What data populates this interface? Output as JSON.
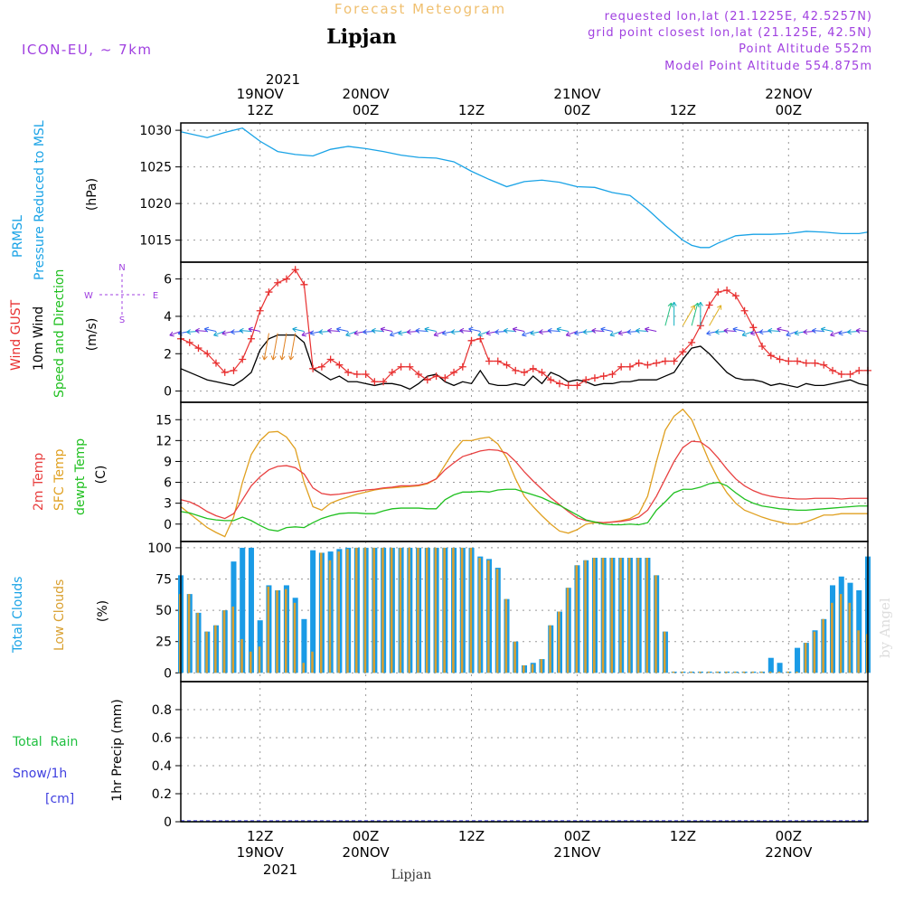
{
  "header": {
    "subtitle": "Forecast Meteogram",
    "location": "Lipjan",
    "model": "ICON-EU, ~ 7km",
    "requested": "requested lon,lat (21.1225E, 42.5257N)",
    "grid_point": "grid point closest lon,lat (21.125E, 42.5N)",
    "point_altitude": "Point Altitude 552m",
    "model_altitude": "Model Point Altitude 554.875m",
    "footer_location": "Lipjan",
    "watermark": "by Angel"
  },
  "time_axis": {
    "top_year": "2021",
    "bottom_year": "2021",
    "unit": "hours from 19NOV 00Z",
    "range": [
      3,
      81
    ],
    "ticks": [
      {
        "hour": 12,
        "time": "12Z",
        "date": "19NOV"
      },
      {
        "hour": 24,
        "time": "00Z",
        "date": "20NOV"
      },
      {
        "hour": 36,
        "time": "12Z",
        "date": ""
      },
      {
        "hour": 48,
        "time": "00Z",
        "date": "21NOV"
      },
      {
        "hour": 60,
        "time": "12Z",
        "date": ""
      },
      {
        "hour": 72,
        "time": "00Z",
        "date": "22NOV"
      }
    ]
  },
  "panel_labels": {
    "pressure": [
      "PRMSL",
      "Pressure Reduced to MSL",
      "(hPa)"
    ],
    "wind": [
      "Wind GUST",
      "10m Wind",
      "Speed and Direction",
      "(m/s)"
    ],
    "compass": {
      "n": "N",
      "s": "S",
      "e": "E",
      "w": "W"
    },
    "temp": [
      "2m Temp",
      "SFC Temp",
      "dewpt Temp",
      "(C)"
    ],
    "clouds": [
      "Total Clouds",
      "Low Clouds",
      "(%)"
    ],
    "precip": [
      "Total  Rain",
      "Snow/1h",
      "[cm]",
      "1hr Precip (mm)"
    ]
  },
  "colors": {
    "pressure": "#1aa3e6",
    "gust": "#e83030",
    "wind": "#000000",
    "temp2m": "#e84040",
    "sfc": "#e0a020",
    "dewpt": "#20c020",
    "total_cloud": "#1a9be6",
    "low_cloud": "#d9a030",
    "title": "#f0c070",
    "info": "#a040e0",
    "rain": "#20c040",
    "snow": "#4040e0"
  },
  "chart_data": [
    {
      "type": "line",
      "title": "PRMSL Pressure Reduced to MSL",
      "ylabel": "(hPa)",
      "ylim": [
        1012,
        1031
      ],
      "yticks": [
        1015,
        1020,
        1025,
        1030
      ],
      "x": [
        3,
        6,
        8,
        10,
        12,
        14,
        16,
        18,
        20,
        22,
        24,
        26,
        28,
        30,
        32,
        34,
        36,
        38,
        40,
        42,
        44,
        46,
        48,
        50,
        52,
        54,
        56,
        58,
        60,
        61,
        62,
        63,
        64,
        66,
        68,
        70,
        72,
        74,
        76,
        78,
        80,
        81
      ],
      "series": [
        {
          "name": "PRMSL",
          "values": [
            1029.8,
            1029.0,
            1029.7,
            1030.3,
            1028.5,
            1027.1,
            1026.7,
            1026.5,
            1027.4,
            1027.8,
            1027.5,
            1027.1,
            1026.6,
            1026.3,
            1026.2,
            1025.7,
            1024.4,
            1023.3,
            1022.3,
            1023.0,
            1023.2,
            1022.9,
            1022.3,
            1022.2,
            1021.5,
            1021.1,
            1019.2,
            1017.0,
            1015.0,
            1014.3,
            1014.0,
            1014.0,
            1014.6,
            1015.6,
            1015.8,
            1015.8,
            1015.9,
            1016.2,
            1016.1,
            1015.9,
            1015.9,
            1016.1
          ]
        }
      ]
    },
    {
      "type": "line",
      "title": "Wind GUST / 10m Wind Speed and Direction",
      "ylabel": "(m/s)",
      "ylim": [
        -0.6,
        6.9
      ],
      "yticks": [
        0,
        2,
        4,
        6
      ],
      "x": [
        3,
        4,
        5,
        6,
        7,
        8,
        9,
        10,
        11,
        12,
        13,
        14,
        15,
        16,
        17,
        18,
        19,
        20,
        21,
        22,
        23,
        24,
        25,
        26,
        27,
        28,
        29,
        30,
        31,
        32,
        33,
        34,
        35,
        36,
        37,
        38,
        39,
        40,
        41,
        42,
        43,
        44,
        45,
        46,
        47,
        48,
        49,
        50,
        51,
        52,
        53,
        54,
        55,
        56,
        57,
        58,
        59,
        60,
        61,
        62,
        63,
        64,
        65,
        66,
        67,
        68,
        69,
        70,
        71,
        72,
        73,
        74,
        75,
        76,
        77,
        78,
        79,
        80,
        81
      ],
      "series": [
        {
          "name": "Wind GUST",
          "values": [
            2.8,
            2.6,
            2.3,
            2.0,
            1.5,
            1.0,
            1.1,
            1.7,
            2.8,
            4.3,
            5.3,
            5.8,
            6.0,
            6.5,
            5.7,
            1.2,
            1.3,
            1.7,
            1.4,
            1.0,
            0.9,
            0.9,
            0.5,
            0.5,
            1.0,
            1.3,
            1.3,
            0.9,
            0.6,
            0.8,
            0.7,
            1.0,
            1.3,
            2.7,
            2.8,
            1.6,
            1.6,
            1.4,
            1.1,
            1.0,
            1.2,
            1.0,
            0.6,
            0.4,
            0.3,
            0.3,
            0.6,
            0.7,
            0.8,
            0.9,
            1.3,
            1.3,
            1.5,
            1.4,
            1.5,
            1.6,
            1.6,
            2.1,
            2.6,
            3.5,
            4.6,
            5.3,
            5.4,
            5.1,
            4.3,
            3.4,
            2.4,
            1.9,
            1.7,
            1.6,
            1.6,
            1.5,
            1.5,
            1.4,
            1.1,
            0.9,
            0.9,
            1.1,
            1.1
          ]
        },
        {
          "name": "10m Wind",
          "values": [
            1.2,
            1.0,
            0.8,
            0.6,
            0.5,
            0.4,
            0.3,
            0.6,
            1.0,
            2.2,
            2.8,
            3.0,
            3.0,
            3.0,
            2.6,
            1.2,
            0.9,
            0.6,
            0.8,
            0.5,
            0.5,
            0.4,
            0.3,
            0.4,
            0.4,
            0.3,
            0.1,
            0.4,
            0.8,
            0.9,
            0.5,
            0.3,
            0.5,
            0.4,
            1.1,
            0.4,
            0.3,
            0.3,
            0.4,
            0.3,
            0.8,
            0.4,
            1.0,
            0.8,
            0.5,
            0.6,
            0.5,
            0.3,
            0.4,
            0.4,
            0.5,
            0.5,
            0.6,
            0.6,
            0.6,
            0.8,
            1.0,
            1.7,
            2.3,
            2.4,
            2.0,
            1.5,
            1.0,
            0.7,
            0.6,
            0.6,
            0.5,
            0.3,
            0.4,
            0.3,
            0.2,
            0.4,
            0.3,
            0.3,
            0.4,
            0.5,
            0.6,
            0.4,
            0.3
          ]
        }
      ]
    },
    {
      "type": "line",
      "title": "2m Temp / SFC Temp / dewpt Temp",
      "ylabel": "(C)",
      "ylim": [
        -2.5,
        17.5
      ],
      "yticks": [
        0,
        3,
        6,
        9,
        12,
        15
      ],
      "x": [
        3,
        4,
        5,
        6,
        7,
        8,
        9,
        10,
        11,
        12,
        13,
        14,
        15,
        16,
        17,
        18,
        19,
        20,
        21,
        22,
        23,
        24,
        25,
        26,
        27,
        28,
        29,
        30,
        31,
        32,
        33,
        34,
        35,
        36,
        37,
        38,
        39,
        40,
        41,
        42,
        43,
        44,
        45,
        46,
        47,
        48,
        49,
        50,
        51,
        52,
        53,
        54,
        55,
        56,
        57,
        58,
        59,
        60,
        61,
        62,
        63,
        64,
        65,
        66,
        67,
        68,
        69,
        70,
        71,
        72,
        73,
        74,
        75,
        76,
        77,
        78,
        79,
        80,
        81
      ],
      "series": [
        {
          "name": "2m Temp",
          "values": [
            3.5,
            3.2,
            2.6,
            1.8,
            1.2,
            0.8,
            1.5,
            3.5,
            5.5,
            6.8,
            7.8,
            8.3,
            8.4,
            8.1,
            7.2,
            5.2,
            4.4,
            4.2,
            4.3,
            4.5,
            4.7,
            4.9,
            5.0,
            5.2,
            5.3,
            5.5,
            5.5,
            5.6,
            5.9,
            6.5,
            7.8,
            8.8,
            9.7,
            10.1,
            10.5,
            10.7,
            10.6,
            10.2,
            9.0,
            7.5,
            6.2,
            5.0,
            3.8,
            2.8,
            1.8,
            0.9,
            0.5,
            0.3,
            0.2,
            0.3,
            0.4,
            0.6,
            1.0,
            2.0,
            4.0,
            6.5,
            9.0,
            11.0,
            11.9,
            11.8,
            10.9,
            9.5,
            7.9,
            6.5,
            5.5,
            4.8,
            4.3,
            4.0,
            3.8,
            3.7,
            3.6,
            3.6,
            3.7,
            3.7,
            3.7,
            3.6,
            3.7,
            3.7,
            3.7
          ]
        },
        {
          "name": "SFC Temp",
          "values": [
            2.5,
            1.5,
            0.5,
            -0.5,
            -1.2,
            -1.8,
            1.0,
            6.0,
            10.0,
            12.0,
            13.2,
            13.3,
            12.5,
            10.8,
            6.0,
            2.5,
            2.0,
            3.0,
            3.5,
            3.9,
            4.3,
            4.6,
            4.9,
            5.1,
            5.2,
            5.3,
            5.4,
            5.5,
            5.8,
            6.5,
            8.5,
            10.5,
            12.0,
            12.0,
            12.3,
            12.5,
            11.5,
            9.5,
            6.5,
            4.0,
            2.5,
            1.2,
            0.0,
            -1.0,
            -1.3,
            -0.8,
            0.0,
            0.2,
            0.2,
            0.3,
            0.5,
            0.8,
            1.5,
            4.0,
            9.0,
            13.5,
            15.5,
            16.5,
            15.0,
            12.0,
            9.0,
            6.5,
            4.5,
            3.0,
            2.0,
            1.5,
            1.0,
            0.6,
            0.3,
            0.0,
            0.0,
            0.3,
            0.8,
            1.3,
            1.3,
            1.5,
            1.5,
            1.5,
            1.5
          ]
        },
        {
          "name": "dewpt Temp",
          "values": [
            1.8,
            1.6,
            1.2,
            0.8,
            0.6,
            0.5,
            0.5,
            1.0,
            0.5,
            -0.2,
            -0.8,
            -1.0,
            -0.5,
            -0.4,
            -0.5,
            0.2,
            0.8,
            1.2,
            1.5,
            1.6,
            1.6,
            1.5,
            1.5,
            1.9,
            2.2,
            2.3,
            2.3,
            2.3,
            2.2,
            2.2,
            3.5,
            4.2,
            4.6,
            4.6,
            4.7,
            4.6,
            4.9,
            5.0,
            5.0,
            4.6,
            4.2,
            3.8,
            3.2,
            2.7,
            2.0,
            1.3,
            0.6,
            0.3,
            0.0,
            -0.1,
            -0.1,
            0.0,
            -0.1,
            0.2,
            2.0,
            3.2,
            4.5,
            5.0,
            5.0,
            5.3,
            5.8,
            6.0,
            5.5,
            4.5,
            3.6,
            3.0,
            2.6,
            2.4,
            2.2,
            2.1,
            2.0,
            2.0,
            2.1,
            2.2,
            2.3,
            2.4,
            2.5,
            2.6,
            2.6
          ]
        }
      ]
    },
    {
      "type": "bar",
      "title": "Total Clouds / Low Clouds",
      "ylabel": "(%)",
      "ylim": [
        -7,
        105
      ],
      "yticks": [
        0,
        25,
        50,
        75,
        100
      ],
      "x": [
        3,
        4,
        5,
        6,
        7,
        8,
        9,
        10,
        11,
        12,
        13,
        14,
        15,
        16,
        17,
        18,
        19,
        20,
        21,
        22,
        23,
        24,
        25,
        26,
        27,
        28,
        29,
        30,
        31,
        32,
        33,
        34,
        35,
        36,
        37,
        38,
        39,
        40,
        41,
        42,
        43,
        44,
        45,
        46,
        47,
        48,
        49,
        50,
        51,
        52,
        53,
        54,
        55,
        56,
        57,
        58,
        59,
        60,
        61,
        62,
        63,
        64,
        65,
        66,
        67,
        68,
        69,
        70,
        71,
        72,
        73,
        74,
        75,
        76,
        77,
        78,
        79,
        80,
        81
      ],
      "series": [
        {
          "name": "Total Clouds",
          "values": [
            78,
            63,
            48,
            33,
            38,
            50,
            89,
            100,
            100,
            42,
            70,
            66,
            70,
            60,
            43,
            98,
            96,
            97,
            99,
            100,
            100,
            100,
            100,
            100,
            100,
            100,
            100,
            100,
            100,
            100,
            100,
            100,
            100,
            100,
            93,
            91,
            84,
            59,
            25,
            6,
            8,
            11,
            38,
            49,
            68,
            86,
            90,
            92,
            92,
            92,
            92,
            92,
            92,
            92,
            78,
            33,
            1,
            1,
            1,
            1,
            1,
            1,
            1,
            1,
            1,
            1,
            1,
            12,
            8,
            1,
            20,
            24,
            34,
            43,
            70,
            77,
            72,
            66,
            93
          ]
        },
        {
          "name": "Low Clouds",
          "values": [
            63,
            63,
            48,
            33,
            38,
            50,
            53,
            27,
            17,
            21,
            69,
            66,
            67,
            56,
            8,
            17,
            96,
            90,
            97,
            99,
            100,
            100,
            100,
            100,
            100,
            100,
            100,
            100,
            100,
            100,
            100,
            100,
            100,
            100,
            92,
            90,
            83,
            59,
            25,
            6,
            7,
            11,
            38,
            49,
            68,
            86,
            90,
            92,
            92,
            92,
            92,
            92,
            92,
            92,
            78,
            33,
            1,
            1,
            1,
            1,
            1,
            1,
            1,
            1,
            1,
            1,
            1,
            1,
            1,
            1,
            1,
            24,
            33,
            43,
            56,
            63,
            56,
            34,
            31
          ]
        }
      ]
    },
    {
      "type": "bar",
      "title": "1hr Precip",
      "ylabel": "1hr Precip (mm)",
      "ylim": [
        0,
        1
      ],
      "yticks": [
        0,
        0.2,
        0.4,
        0.6,
        0.8
      ],
      "ytick_labels": [
        "0",
        "0.2",
        "0.4",
        "0.6",
        "0.8"
      ],
      "x": [
        3,
        81
      ],
      "series": [
        {
          "name": "Total Rain",
          "values": [
            0,
            0
          ]
        },
        {
          "name": "Snow/1h",
          "values": [
            0,
            0
          ]
        }
      ]
    }
  ]
}
